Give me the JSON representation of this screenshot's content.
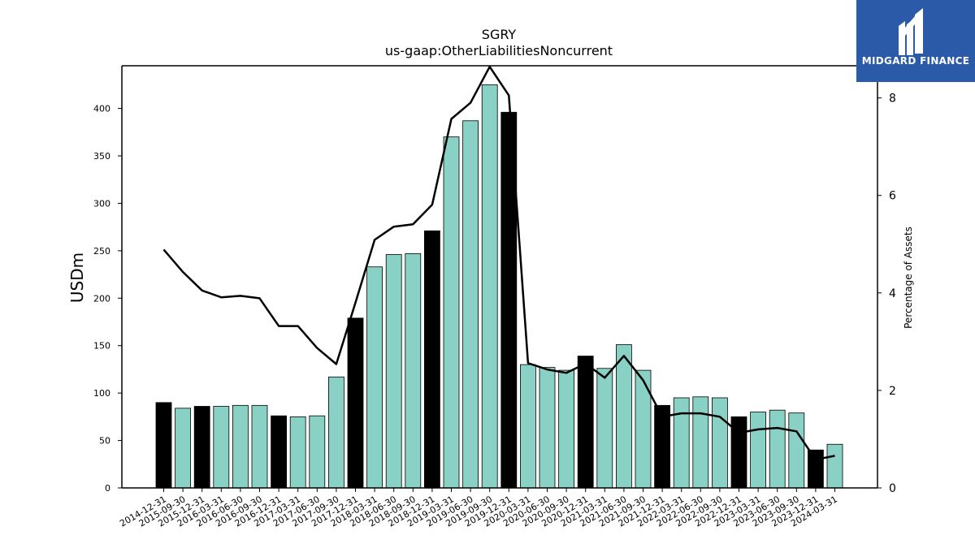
{
  "chart_data": {
    "type": "bar",
    "title": "SGRY",
    "subtitle": "us-gaap:OtherLiabilitiesNoncurrent",
    "ylabel": "USDm",
    "y2label": "Percentage of Assets",
    "ylim": [
      0,
      445
    ],
    "y2lim": [
      0,
      8.66
    ],
    "yticks": [
      0,
      50,
      100,
      150,
      200,
      250,
      300,
      350,
      400
    ],
    "y2ticks": [
      0,
      2,
      4,
      6,
      8
    ],
    "categories": [
      "2014-12-31",
      "2015-09-30",
      "2015-12-31",
      "2016-03-31",
      "2016-06-30",
      "2016-09-30",
      "2016-12-31",
      "2017-03-31",
      "2017-06-30",
      "2017-09-30",
      "2017-12-31",
      "2018-03-31",
      "2018-06-30",
      "2018-09-30",
      "2018-12-31",
      "2019-03-31",
      "2019-06-30",
      "2019-09-30",
      "2019-12-31",
      "2020-03-31",
      "2020-06-30",
      "2020-09-30",
      "2020-12-31",
      "2021-03-31",
      "2021-06-30",
      "2021-09-30",
      "2021-12-31",
      "2022-03-31",
      "2022-06-30",
      "2022-09-30",
      "2022-12-31",
      "2023-03-31",
      "2023-06-30",
      "2023-09-30",
      "2023-12-31",
      "2024-03-31"
    ],
    "series": [
      {
        "kind": "bar",
        "axis": "left",
        "values": [
          90,
          84,
          86,
          86,
          87,
          87,
          76,
          75,
          76,
          117,
          179,
          233,
          246,
          247,
          271,
          370,
          387,
          425,
          396,
          130,
          127,
          124,
          139,
          126,
          151,
          124,
          87,
          95,
          96,
          95,
          75,
          80,
          82,
          79,
          40,
          46
        ],
        "highlight": [
          true,
          false,
          true,
          false,
          false,
          false,
          true,
          false,
          false,
          false,
          true,
          false,
          false,
          false,
          true,
          false,
          false,
          false,
          true,
          false,
          false,
          false,
          true,
          false,
          false,
          false,
          true,
          false,
          false,
          false,
          true,
          false,
          false,
          false,
          true,
          false
        ]
      },
      {
        "kind": "line",
        "axis": "right",
        "values": [
          4.89,
          4.43,
          4.05,
          3.91,
          3.94,
          3.89,
          3.32,
          3.32,
          2.87,
          2.54,
          3.8,
          5.09,
          5.36,
          5.41,
          5.81,
          7.57,
          7.9,
          8.64,
          8.05,
          2.56,
          2.43,
          2.36,
          2.55,
          2.26,
          2.71,
          2.21,
          1.46,
          1.53,
          1.53,
          1.46,
          1.13,
          1.2,
          1.23,
          1.16,
          0.58,
          0.66
        ]
      }
    ],
    "colors": {
      "bar": "#88d1c4",
      "bar_highlight": "#000000",
      "line": "#000000"
    }
  },
  "logo": {
    "text": "MIDGARD FINANCE",
    "background": "#2b5aa8"
  }
}
